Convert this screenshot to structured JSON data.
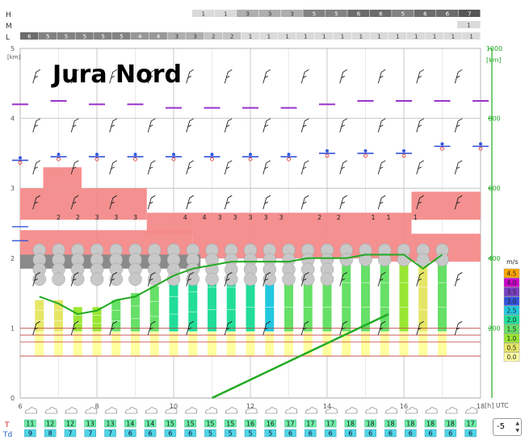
{
  "title": "Jura Nord",
  "axes": {
    "left_unit": "[km]",
    "right_unit": "[km]",
    "left_ticks": [
      "0",
      "1",
      "2",
      "3",
      "4",
      "5"
    ],
    "right_ticks": [
      "200",
      "400",
      "600",
      "800",
      "1000"
    ],
    "x_unit": "[h] UTC",
    "x_ticks": [
      "6",
      "8",
      "10",
      "12",
      "14",
      "16",
      "18"
    ]
  },
  "rows": {
    "H_label": "H",
    "M_label": "M",
    "L_label": "L",
    "T_label": "T",
    "Td_label": "Td",
    "H": [
      "1",
      "1",
      "3",
      "3",
      "3",
      "5",
      "5",
      "6",
      "6",
      "5",
      "6",
      "6",
      "7"
    ],
    "M": [
      "1"
    ],
    "L": [
      "6",
      "5",
      "5",
      "5",
      "5",
      "5",
      "4",
      "4",
      "3",
      "3",
      "2",
      "2",
      "1",
      "1",
      "1",
      "1",
      "1",
      "1",
      "1",
      "1",
      "1",
      "1",
      "1",
      "1",
      "1"
    ],
    "T": [
      "11",
      "12",
      "12",
      "13",
      "13",
      "14",
      "14",
      "15",
      "15",
      "15",
      "15",
      "16",
      "16",
      "17",
      "17",
      "17",
      "18",
      "18",
      "18",
      "18",
      "18",
      "18",
      "17"
    ],
    "Td": [
      "9",
      "8",
      "7",
      "7",
      "7",
      "6",
      "6",
      "6",
      "6",
      "5",
      "5",
      "5",
      "5",
      "6",
      "6",
      "6",
      "6",
      "6",
      "6",
      "6",
      "6",
      "6",
      "6"
    ]
  },
  "legend": {
    "unit": "m/s",
    "labels": [
      "4.5",
      "4.0",
      "3.5",
      "3.0",
      "2.5",
      "2.0",
      "1.5",
      "1.0",
      "0.5",
      "0.0"
    ],
    "colors": [
      "#ffa500",
      "#cc00cc",
      "#7b3fc4",
      "#3355dd",
      "#22c8e0",
      "#22dd99",
      "#66e066",
      "#99e633",
      "#e6e666",
      "#ffffa0"
    ]
  },
  "stepper": {
    "value": "-5"
  },
  "chart_data": {
    "type": "meteogram",
    "title": "Jura Nord",
    "x_unit": "[h] UTC",
    "x_range": [
      6,
      18
    ],
    "y_left_range_km": [
      0,
      5
    ],
    "y_right_range_km": [
      0,
      1000
    ],
    "hours": [
      6.5,
      7,
      7.5,
      8,
      8.5,
      9,
      9.5,
      10,
      10.5,
      11,
      11.5,
      12,
      12.5,
      13,
      13.5,
      14,
      14.5,
      15,
      15.5,
      16,
      16.5,
      17
    ],
    "bar_top_km": [
      1.4,
      1.4,
      1.3,
      1.3,
      1.4,
      1.5,
      1.6,
      1.7,
      1.8,
      1.9,
      1.9,
      2.0,
      2.0,
      2.0,
      2.0,
      2.0,
      2.0,
      2.0,
      2.0,
      2.0,
      1.9,
      2.0
    ],
    "bar_wind_ms": [
      0.5,
      0.5,
      1.0,
      1.0,
      1.5,
      1.5,
      1.5,
      2.0,
      2.0,
      2.0,
      2.0,
      2.0,
      2.5,
      1.5,
      1.5,
      1.5,
      1.5,
      1.5,
      1.5,
      1.0,
      0.5,
      1.5
    ],
    "green_line_km": [
      1.45,
      1.35,
      1.2,
      1.25,
      1.4,
      1.45,
      1.6,
      1.75,
      1.85,
      1.9,
      1.95,
      1.95,
      1.95,
      1.95,
      2.0,
      2.0,
      2.0,
      2.05,
      2.05,
      2.05,
      1.85,
      2.05
    ],
    "right_line_km": [
      [
        11,
        0
      ],
      [
        15.6,
        1.2
      ]
    ],
    "cloud_layers_km": [
      {
        "from": 6,
        "to": 9.3,
        "base": 2.55,
        "top": 3.0
      },
      {
        "from": 6.6,
        "to": 7.6,
        "base": 3.0,
        "top": 3.3
      },
      {
        "from": 9.3,
        "to": 16.2,
        "base": 2.35,
        "top": 2.65
      },
      {
        "from": 16.2,
        "to": 18,
        "base": 2.55,
        "top": 2.95
      },
      {
        "from": 6,
        "to": 10.5,
        "base": 1.95,
        "top": 2.4
      },
      {
        "from": 10.5,
        "to": 15.6,
        "base": 2.0,
        "top": 2.35
      },
      {
        "from": 15.6,
        "to": 18,
        "base": 1.95,
        "top": 2.35
      }
    ],
    "level_lines_km": [
      0.6,
      0.8,
      0.9,
      1.0
    ],
    "purple_level_km": [
      4.2,
      4.25,
      4.2,
      4.2,
      4.15,
      4.15,
      4.15,
      4.15,
      4.2,
      4.25,
      4.25,
      4.25,
      4.25,
      4.3,
      4.3
    ],
    "blue_level_km": [
      3.4,
      3.45,
      3.45,
      3.45,
      3.45,
      3.45,
      3.45,
      3.45,
      3.5,
      3.5,
      3.5,
      3.6,
      3.6,
      3.6,
      3.6
    ],
    "wind_barbs": true,
    "cloud_labels": [
      "2",
      "2",
      "3",
      "3",
      "3",
      "4",
      "4",
      "3",
      "3",
      "3",
      "3",
      "3",
      "2",
      "2",
      "1",
      "1",
      "1"
    ]
  }
}
